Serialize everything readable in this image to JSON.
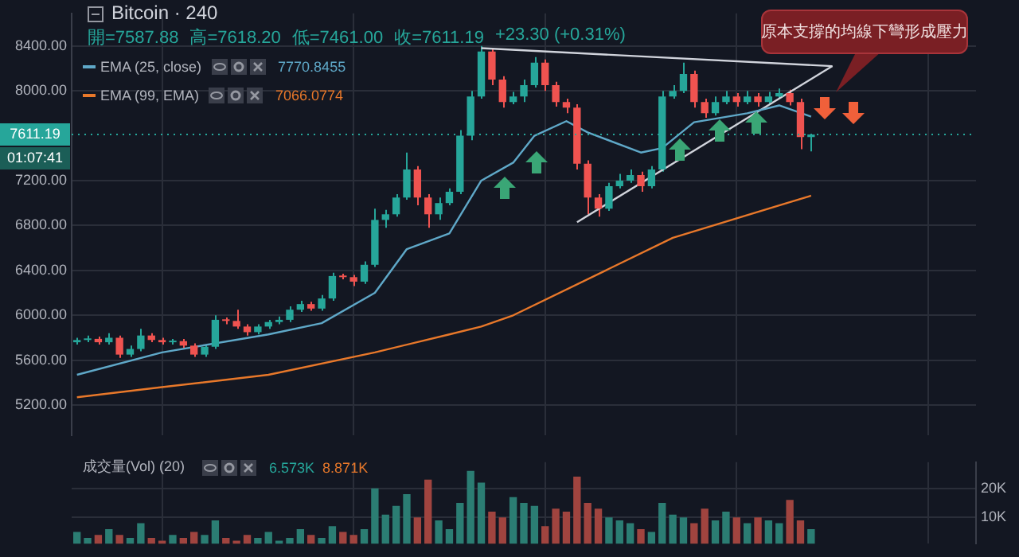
{
  "chart_data": [
    {
      "type": "candlestick",
      "title": "Bitcoin · 240",
      "annotations": [
        "開=7587.88",
        "高=7618.20",
        "低=7461.00",
        "收=7611.19",
        "+23.30 (+0.31%)",
        "7770.8455",
        "7066.0774",
        "01:07:41",
        "原本支撐的均線下彎形成壓力"
      ],
      "categories": [
        null,
        null,
        null,
        null,
        null,
        null,
        null,
        null,
        null,
        null,
        null,
        null,
        null,
        null,
        null,
        null,
        null,
        null,
        null,
        null,
        null,
        null,
        null,
        null,
        null,
        null,
        null,
        null,
        null,
        null,
        null,
        null,
        null,
        null,
        null,
        null,
        null,
        null,
        null,
        null,
        null,
        null,
        null,
        null,
        null,
        null,
        null,
        null,
        null,
        null,
        null,
        null,
        null,
        null,
        null,
        null,
        null,
        null,
        null,
        null,
        null,
        null,
        null,
        null,
        null,
        null,
        null,
        null,
        null,
        null,
        null,
        null,
        null,
        null,
        null,
        null,
        null,
        null,
        null,
        null,
        null,
        null,
        null,
        null,
        null
      ],
      "ohlc": [
        [
          5760,
          5800,
          5740,
          5780
        ],
        [
          5780,
          5820,
          5760,
          5790
        ],
        [
          5790,
          5810,
          5740,
          5760
        ],
        [
          5760,
          5840,
          5740,
          5800
        ],
        [
          5800,
          5820,
          5620,
          5650
        ],
        [
          5650,
          5730,
          5630,
          5700
        ],
        [
          5700,
          5880,
          5680,
          5820
        ],
        [
          5820,
          5840,
          5760,
          5780
        ],
        [
          5780,
          5800,
          5740,
          5760
        ],
        [
          5760,
          5790,
          5740,
          5770
        ],
        [
          5770,
          5790,
          5710,
          5730
        ],
        [
          5730,
          5750,
          5630,
          5650
        ],
        [
          5650,
          5740,
          5630,
          5720
        ],
        [
          5720,
          6000,
          5700,
          5960
        ],
        [
          5960,
          5980,
          5920,
          5950
        ],
        [
          5950,
          6050,
          5880,
          5900
        ],
        [
          5900,
          5920,
          5820,
          5850
        ],
        [
          5850,
          5920,
          5830,
          5900
        ],
        [
          5900,
          5960,
          5880,
          5940
        ],
        [
          5940,
          5990,
          5920,
          5960
        ],
        [
          5960,
          6080,
          5940,
          6050
        ],
        [
          6050,
          6130,
          6030,
          6100
        ],
        [
          6100,
          6120,
          6040,
          6060
        ],
        [
          6060,
          6180,
          6040,
          6150
        ],
        [
          6150,
          6380,
          6130,
          6350
        ],
        [
          6350,
          6370,
          6320,
          6340
        ],
        [
          6340,
          6360,
          6260,
          6300
        ],
        [
          6300,
          6480,
          6280,
          6450
        ],
        [
          6450,
          6950,
          6430,
          6850
        ],
        [
          6850,
          6940,
          6780,
          6900
        ],
        [
          6900,
          7080,
          6880,
          7050
        ],
        [
          7050,
          7450,
          7030,
          7300
        ],
        [
          7300,
          7330,
          6980,
          7050
        ],
        [
          7050,
          7080,
          6780,
          6900
        ],
        [
          6900,
          7050,
          6850,
          7000
        ],
        [
          7000,
          7130,
          6980,
          7100
        ],
        [
          7100,
          7650,
          7080,
          7600
        ],
        [
          7600,
          8000,
          7560,
          7950
        ],
        [
          7950,
          8400,
          7930,
          8350
        ],
        [
          8350,
          8380,
          8050,
          8100
        ],
        [
          8100,
          8130,
          7850,
          7900
        ],
        [
          7900,
          7990,
          7880,
          7950
        ],
        [
          7950,
          8100,
          7900,
          8050
        ],
        [
          8050,
          8300,
          8030,
          8250
        ],
        [
          8250,
          8280,
          8000,
          8050
        ],
        [
          8050,
          8080,
          7860,
          7900
        ],
        [
          7900,
          7930,
          7800,
          7850
        ],
        [
          7850,
          7880,
          7300,
          7350
        ],
        [
          7350,
          7380,
          6900,
          7050
        ],
        [
          7050,
          7080,
          6880,
          6950
        ],
        [
          6950,
          7180,
          6930,
          7150
        ],
        [
          7150,
          7260,
          7130,
          7200
        ],
        [
          7200,
          7300,
          7180,
          7250
        ],
        [
          7250,
          7280,
          7100,
          7150
        ],
        [
          7150,
          7330,
          7130,
          7300
        ],
        [
          7300,
          8000,
          7280,
          7950
        ],
        [
          7950,
          8050,
          7930,
          8000
        ],
        [
          8000,
          8250,
          7980,
          8150
        ],
        [
          8150,
          8180,
          7850,
          7900
        ],
        [
          7900,
          7930,
          7760,
          7800
        ],
        [
          7800,
          7950,
          7780,
          7900
        ],
        [
          7900,
          8000,
          7880,
          7950
        ],
        [
          7950,
          7980,
          7860,
          7900
        ],
        [
          7900,
          8000,
          7880,
          7950
        ],
        [
          7950,
          7980,
          7860,
          7900
        ],
        [
          7900,
          7990,
          7880,
          7950
        ],
        [
          7950,
          8020,
          7930,
          7980
        ],
        [
          7980,
          8010,
          7870,
          7900
        ],
        [
          7900,
          7930,
          7480,
          7587.88
        ],
        [
          7587.88,
          7618.2,
          7461,
          7611.19
        ],
        null,
        null,
        null,
        null,
        null,
        null,
        null,
        null,
        null,
        null,
        null,
        null,
        null,
        null,
        null
      ],
      "colors": [
        "#26a69a",
        "#26a69a",
        "#ef5350",
        "#26a69a",
        "#ef5350",
        "#26a69a",
        "#26a69a",
        "#ef5350",
        "#ef5350",
        "#26a69a",
        "#ef5350",
        "#ef5350",
        "#26a69a",
        "#26a69a",
        "#ef5350",
        "#ef5350",
        "#ef5350",
        "#26a69a",
        "#26a69a",
        "#26a69a",
        "#26a69a",
        "#26a69a",
        "#ef5350",
        "#26a69a",
        "#26a69a",
        "#ef5350",
        "#ef5350",
        "#26a69a",
        "#26a69a",
        "#26a69a",
        "#26a69a",
        "#26a69a",
        "#ef5350",
        "#ef5350",
        "#26a69a",
        "#26a69a",
        "#26a69a",
        "#26a69a",
        "#26a69a",
        "#ef5350",
        "#ef5350",
        "#26a69a",
        "#26a69a",
        "#26a69a",
        "#ef5350",
        "#ef5350",
        "#ef5350",
        "#ef5350",
        "#ef5350",
        "#ef5350",
        "#26a69a",
        "#26a69a",
        "#26a69a",
        "#ef5350",
        "#26a69a",
        "#26a69a",
        "#26a69a",
        "#26a69a",
        "#ef5350",
        "#ef5350",
        "#26a69a",
        "#26a69a",
        "#ef5350",
        "#26a69a",
        "#ef5350",
        "#26a69a",
        "#26a69a",
        "#ef5350",
        "#ef5350",
        "#26a69a",
        null,
        null,
        null,
        null,
        null,
        null,
        null,
        null,
        null,
        null,
        null,
        null,
        null,
        null,
        null
      ],
      "series": [
        {
          "type": "line",
          "name": "EMA (25, close)",
          "color": "#5fa8c8",
          "values": [
            5470,
            null,
            null,
            null,
            null,
            null,
            null,
            null,
            5670,
            null,
            null,
            null,
            null,
            null,
            null,
            null,
            null,
            null,
            5830,
            null,
            null,
            null,
            null,
            5930,
            null,
            null,
            null,
            null,
            6200,
            null,
            null,
            6590,
            null,
            null,
            null,
            6730,
            null,
            null,
            7200,
            null,
            null,
            7360,
            null,
            7600,
            null,
            null,
            7730,
            null,
            7630,
            null,
            null,
            null,
            null,
            7450,
            null,
            7490,
            null,
            null,
            7720,
            null,
            null,
            null,
            null,
            7800,
            null,
            null,
            7870,
            null,
            null,
            7770,
            null,
            null,
            null,
            null,
            null,
            null,
            null,
            null,
            null,
            null,
            null,
            null,
            null,
            null,
            null
          ]
        },
        {
          "type": "line",
          "name": "EMA (99, EMA)",
          "color": "#e8782a",
          "values": [
            5270,
            null,
            null,
            null,
            null,
            null,
            null,
            null,
            5360,
            null,
            null,
            null,
            null,
            null,
            null,
            null,
            null,
            null,
            5470,
            null,
            null,
            null,
            null,
            null,
            null,
            null,
            null,
            null,
            5670,
            null,
            null,
            null,
            null,
            null,
            null,
            5830,
            null,
            null,
            5900,
            null,
            null,
            6000,
            null,
            null,
            null,
            null,
            null,
            null,
            null,
            null,
            null,
            null,
            null,
            null,
            null,
            null,
            6690,
            null,
            null,
            null,
            null,
            null,
            null,
            null,
            null,
            null,
            null,
            null,
            null,
            7066,
            null,
            null,
            null,
            null,
            null,
            null,
            null,
            null,
            null,
            null,
            null,
            null,
            null,
            null,
            null
          ]
        },
        {
          "type": "line",
          "color": "#d1d4dc",
          "values": [
            null,
            null,
            null,
            null,
            null,
            null,
            null,
            null,
            null,
            null,
            null,
            null,
            null,
            null,
            null,
            null,
            null,
            null,
            null,
            null,
            null,
            null,
            null,
            null,
            null,
            null,
            null,
            null,
            null,
            null,
            null,
            null,
            null,
            null,
            null,
            null,
            null,
            null,
            8380,
            null,
            null,
            null,
            null,
            null,
            null,
            null,
            null,
            null,
            null,
            null,
            null,
            null,
            null,
            null,
            null,
            null,
            null,
            null,
            null,
            null,
            null,
            null,
            null,
            null,
            null,
            null,
            null,
            null,
            null,
            null,
            null,
            8220,
            null,
            null,
            null,
            null,
            null,
            null,
            null,
            null,
            null,
            null,
            null,
            null,
            null
          ]
        },
        {
          "type": "line",
          "color": "#d1d4dc",
          "values": [
            null,
            null,
            null,
            null,
            null,
            null,
            null,
            null,
            null,
            null,
            null,
            null,
            null,
            null,
            null,
            null,
            null,
            null,
            null,
            null,
            null,
            null,
            null,
            null,
            null,
            null,
            null,
            null,
            null,
            null,
            null,
            null,
            null,
            null,
            null,
            null,
            null,
            null,
            null,
            null,
            null,
            null,
            null,
            null,
            null,
            null,
            null,
            6830,
            null,
            null,
            null,
            null,
            null,
            null,
            null,
            null,
            null,
            null,
            null,
            null,
            null,
            null,
            null,
            null,
            null,
            null,
            null,
            null,
            null,
            null,
            null,
            8220,
            null,
            null,
            null,
            null,
            null,
            null,
            null,
            null,
            null,
            null,
            null,
            null,
            null
          ]
        }
      ],
      "ylim": [
        4930,
        8690
      ],
      "yticks": [
        {
          "value": 5200,
          "label": "5200.00"
        },
        {
          "value": 5600,
          "label": "5600.00"
        },
        {
          "value": 6000,
          "label": "6000.00"
        },
        {
          "value": 6400,
          "label": "6400.00"
        },
        {
          "value": 6800,
          "label": "6800.00"
        },
        {
          "value": 7200,
          "label": "7200.00"
        },
        {
          "value": 8000,
          "label": "8000.00"
        },
        {
          "value": 8400,
          "label": "8400.00"
        }
      ],
      "tick_labels": "y",
      "grid": true,
      "legend": "top left",
      "ref_lines": [
        {
          "axis": "y",
          "value": 7611.19,
          "label": "7611.19",
          "color": "#26a69a",
          "line_style": "dotted"
        }
      ]
    },
    {
      "type": "bar",
      "annotations": [
        "成交量(Vol) (20)",
        "6.573K",
        "8.871K"
      ],
      "categories": [
        null,
        null,
        null,
        null,
        null,
        null,
        null,
        null,
        null,
        null,
        null,
        null,
        null,
        null,
        null,
        null,
        null,
        null,
        null,
        null,
        null,
        null,
        null,
        null,
        null,
        null,
        null,
        null,
        null,
        null,
        null,
        null,
        null,
        null,
        null,
        null,
        null,
        null,
        null,
        null,
        null,
        null,
        null,
        null,
        null,
        null,
        null,
        null,
        null,
        null,
        null,
        null,
        null,
        null,
        null,
        null,
        null,
        null,
        null,
        null,
        null,
        null,
        null,
        null,
        null,
        null,
        null,
        null,
        null,
        null,
        null,
        null,
        null,
        null,
        null,
        null,
        null,
        null,
        null,
        null,
        null,
        null,
        null,
        null,
        null
      ],
      "values": [
        5000,
        3000,
        4000,
        6000,
        4000,
        3000,
        8000,
        3000,
        2000,
        4000,
        3000,
        5000,
        4000,
        9000,
        3000,
        2000,
        4000,
        3000,
        5000,
        2000,
        3000,
        6000,
        4000,
        3000,
        7000,
        5000,
        4000,
        6000,
        20000,
        11000,
        14000,
        18000,
        10000,
        23000,
        9000,
        6000,
        15000,
        26000,
        22000,
        12000,
        10000,
        17000,
        15000,
        14000,
        7000,
        13000,
        12000,
        24000,
        15000,
        13000,
        10000,
        9000,
        8000,
        6000,
        5000,
        15000,
        11000,
        10000,
        8000,
        13000,
        9000,
        12000,
        10000,
        8000,
        10000,
        9000,
        8000,
        16000,
        9000,
        6000,
        null,
        null,
        null,
        null,
        null,
        null,
        null,
        null,
        null,
        null,
        null,
        null,
        null,
        null,
        null
      ],
      "colors": [
        "#2b7d73",
        "#2b7d73",
        "#a0443f",
        "#2b7d73",
        "#a0443f",
        "#2b7d73",
        "#2b7d73",
        "#a0443f",
        "#a0443f",
        "#2b7d73",
        "#a0443f",
        "#a0443f",
        "#2b7d73",
        "#2b7d73",
        "#a0443f",
        "#a0443f",
        "#a0443f",
        "#2b7d73",
        "#2b7d73",
        "#2b7d73",
        "#2b7d73",
        "#2b7d73",
        "#a0443f",
        "#2b7d73",
        "#2b7d73",
        "#a0443f",
        "#a0443f",
        "#2b7d73",
        "#2b7d73",
        "#2b7d73",
        "#2b7d73",
        "#2b7d73",
        "#a0443f",
        "#a0443f",
        "#2b7d73",
        "#2b7d73",
        "#2b7d73",
        "#2b7d73",
        "#2b7d73",
        "#a0443f",
        "#a0443f",
        "#2b7d73",
        "#2b7d73",
        "#2b7d73",
        "#a0443f",
        "#a0443f",
        "#a0443f",
        "#a0443f",
        "#a0443f",
        "#a0443f",
        "#2b7d73",
        "#2b7d73",
        "#2b7d73",
        "#a0443f",
        "#2b7d73",
        "#2b7d73",
        "#2b7d73",
        "#2b7d73",
        "#a0443f",
        "#a0443f",
        "#2b7d73",
        "#2b7d73",
        "#a0443f",
        "#2b7d73",
        "#a0443f",
        "#2b7d73",
        "#2b7d73",
        "#a0443f",
        "#a0443f",
        "#2b7d73",
        null,
        null,
        null,
        null,
        null,
        null,
        null,
        null,
        null,
        null,
        null,
        null,
        null,
        null,
        null
      ],
      "ylim": [
        1000,
        29000
      ],
      "yticks": [
        {
          "value": 10000,
          "label": "10K"
        },
        {
          "value": 20000,
          "label": "20K"
        }
      ],
      "tick_labels": "y",
      "grid": true
    }
  ]
}
